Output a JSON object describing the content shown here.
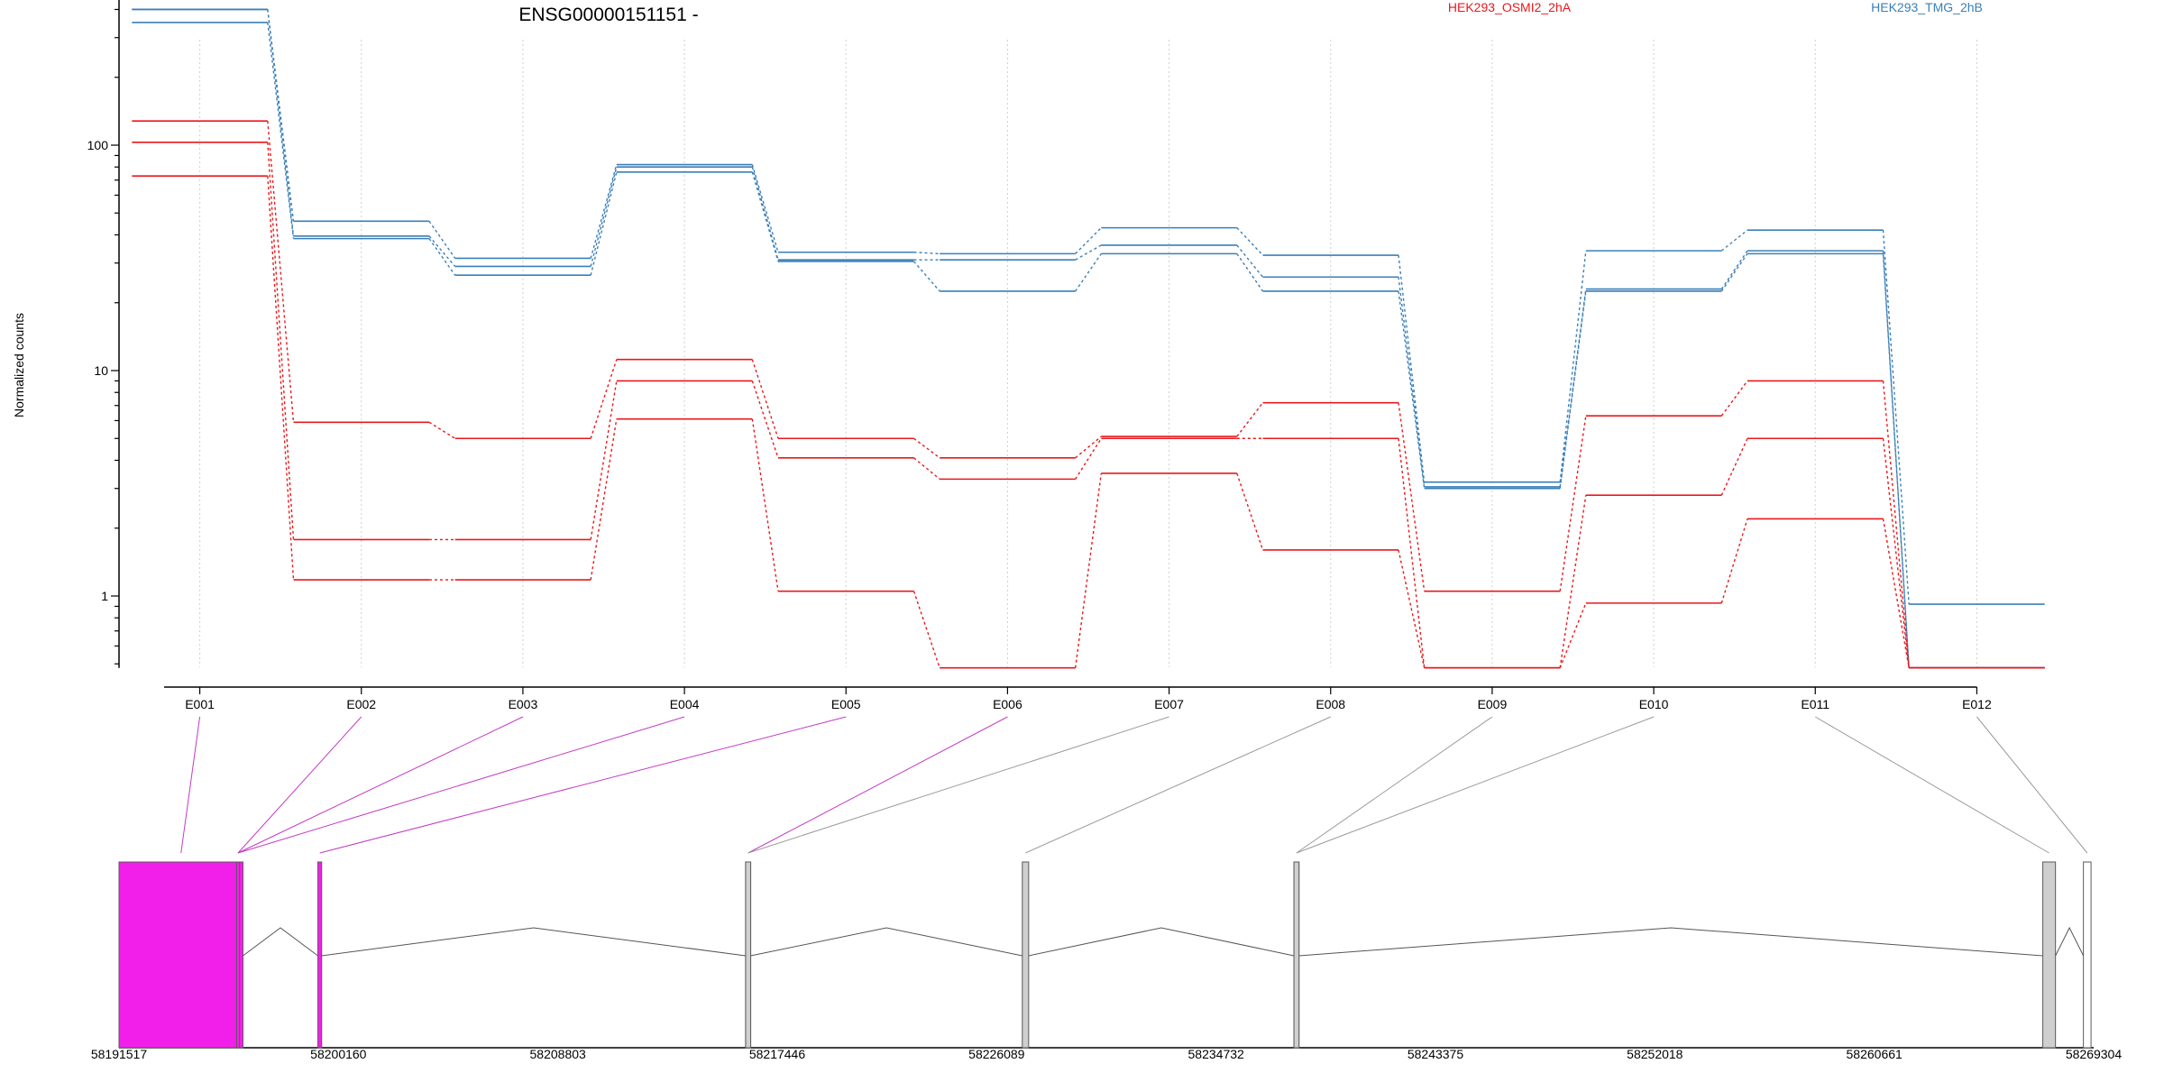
{
  "chart_data": {
    "type": "line",
    "title": "ENSG00000151151 -",
    "ylabel": "Normalized counts",
    "xlabel": "",
    "y_scale": "log",
    "ylim": [
      0.48,
      520
    ],
    "y_ticks": [
      {
        "value": 1,
        "label": "1"
      },
      {
        "value": 10,
        "label": "10"
      },
      {
        "value": 100,
        "label": "100"
      }
    ],
    "grid": "vertical dotted",
    "legend": [
      {
        "name": "HEK293_OSMI2_2hA",
        "color": "#e8191c",
        "placement": "top-center"
      },
      {
        "name": "HEK293_TMG_2hB",
        "color": "#3a7fb8",
        "placement": "top-right"
      }
    ],
    "categories": [
      "E001",
      "E002",
      "E003",
      "E004",
      "E005",
      "E006",
      "E007",
      "E008",
      "E009",
      "E010",
      "E011",
      "E012"
    ],
    "series": [
      {
        "group": "HEK293_TMG_2hB",
        "color": "#3a7fb8",
        "values": [
          400,
          46,
          31.5,
          82,
          33.5,
          33,
          43,
          32.5,
          3.2,
          34,
          42,
          0.92
        ]
      },
      {
        "group": "HEK293_TMG_2hB",
        "color": "#3a7fb8",
        "values": [
          400,
          39.5,
          29,
          80,
          31,
          31,
          36,
          26,
          3.05,
          23,
          34,
          0.48
        ]
      },
      {
        "group": "HEK293_TMG_2hB",
        "color": "#3a7fb8",
        "values": [
          350,
          38.5,
          26.5,
          76,
          30.5,
          22.5,
          33,
          22.5,
          3.0,
          22.5,
          33,
          0.48
        ]
      },
      {
        "group": "HEK293_OSMI2_2hA",
        "color": "#e8191c",
        "values": [
          128,
          5.9,
          5.0,
          11.2,
          5.0,
          4.1,
          5.1,
          7.2,
          1.05,
          6.3,
          9.0,
          0.48
        ]
      },
      {
        "group": "HEK293_OSMI2_2hA",
        "color": "#e8191c",
        "values": [
          103,
          1.78,
          1.78,
          9.0,
          4.1,
          3.3,
          5.0,
          5.0,
          0.48,
          2.8,
          5.0,
          0.48
        ]
      },
      {
        "group": "HEK293_OSMI2_2hA",
        "color": "#e8191c",
        "values": [
          73,
          1.18,
          1.18,
          6.1,
          1.05,
          0.48,
          3.5,
          1.6,
          0.48,
          0.93,
          2.2,
          0.48
        ]
      }
    ],
    "gene_model": {
      "x_ticks": [
        "58191517",
        "58200160",
        "58208803",
        "58217446",
        "58226089",
        "58234732",
        "58243375",
        "58252018",
        "58260661",
        "58269304"
      ],
      "x_range": [
        58191517,
        58269304
      ],
      "highlight_color": "#f21fea",
      "exons": [
        {
          "id": "E001",
          "start": 58191517,
          "end": 58196400,
          "highlight": true
        },
        {
          "id": "E002",
          "start": 58196150,
          "end": 58196260,
          "highlight": true
        },
        {
          "id": "E003",
          "start": 58196150,
          "end": 58196260,
          "highlight": true
        },
        {
          "id": "E004",
          "start": 58196150,
          "end": 58196260,
          "highlight": true
        },
        {
          "id": "E005",
          "start": 58199350,
          "end": 58199500,
          "highlight": true
        },
        {
          "id": "E006",
          "start": 58216200,
          "end": 58216400,
          "highlight": true
        },
        {
          "id": "E007",
          "start": 58216200,
          "end": 58216400,
          "highlight": false
        },
        {
          "id": "E008",
          "start": 58227100,
          "end": 58227350,
          "highlight": false
        },
        {
          "id": "E009",
          "start": 58237800,
          "end": 58238000,
          "highlight": false
        },
        {
          "id": "E010",
          "start": 58237800,
          "end": 58238000,
          "highlight": false
        },
        {
          "id": "E011",
          "start": 58267300,
          "end": 58267800,
          "highlight": false
        },
        {
          "id": "E012",
          "start": 58268900,
          "end": 58269200,
          "highlight": false
        }
      ]
    }
  }
}
